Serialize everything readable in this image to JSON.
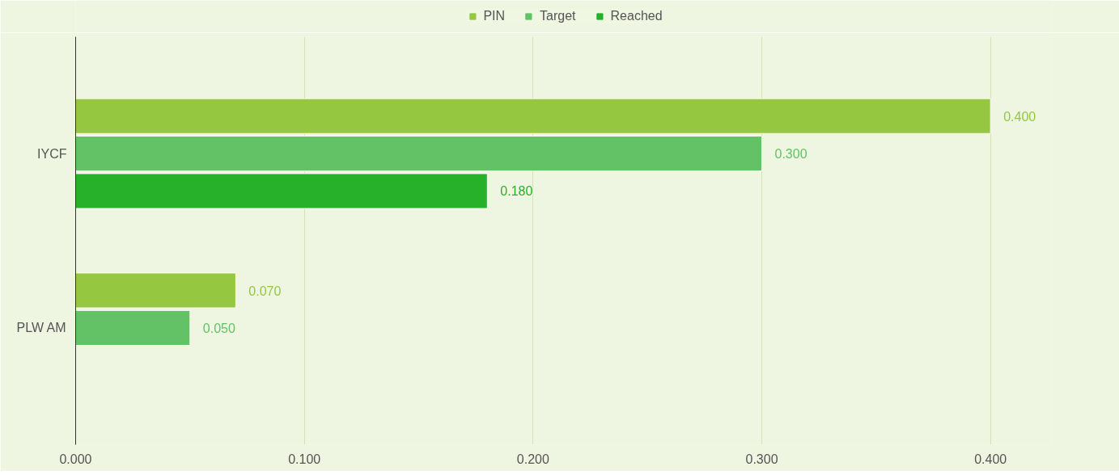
{
  "chart_data": {
    "type": "bar",
    "orientation": "horizontal",
    "categories": [
      "IYCF",
      "PLW AM"
    ],
    "series": [
      {
        "name": "PIN",
        "color": "#95c840",
        "values": [
          0.4,
          0.07
        ]
      },
      {
        "name": "Target",
        "color": "#62c265",
        "values": [
          0.3,
          0.05
        ]
      },
      {
        "name": "Reached",
        "color": "#27b02a",
        "values": [
          0.18,
          null
        ]
      }
    ],
    "xlim": [
      0,
      0.427
    ],
    "xticks": [
      {
        "value": 0,
        "label": "0.000"
      },
      {
        "value": 0.1,
        "label": "0.100"
      },
      {
        "value": 0.2,
        "label": "0.200"
      },
      {
        "value": 0.3,
        "label": "0.300"
      },
      {
        "value": 0.4,
        "label": "0.400"
      }
    ],
    "value_labels": [
      [
        "0.400",
        "0.070"
      ],
      [
        "0.300",
        "0.050"
      ],
      [
        "0.180",
        null
      ]
    ],
    "grid": "x",
    "legend": "top"
  }
}
